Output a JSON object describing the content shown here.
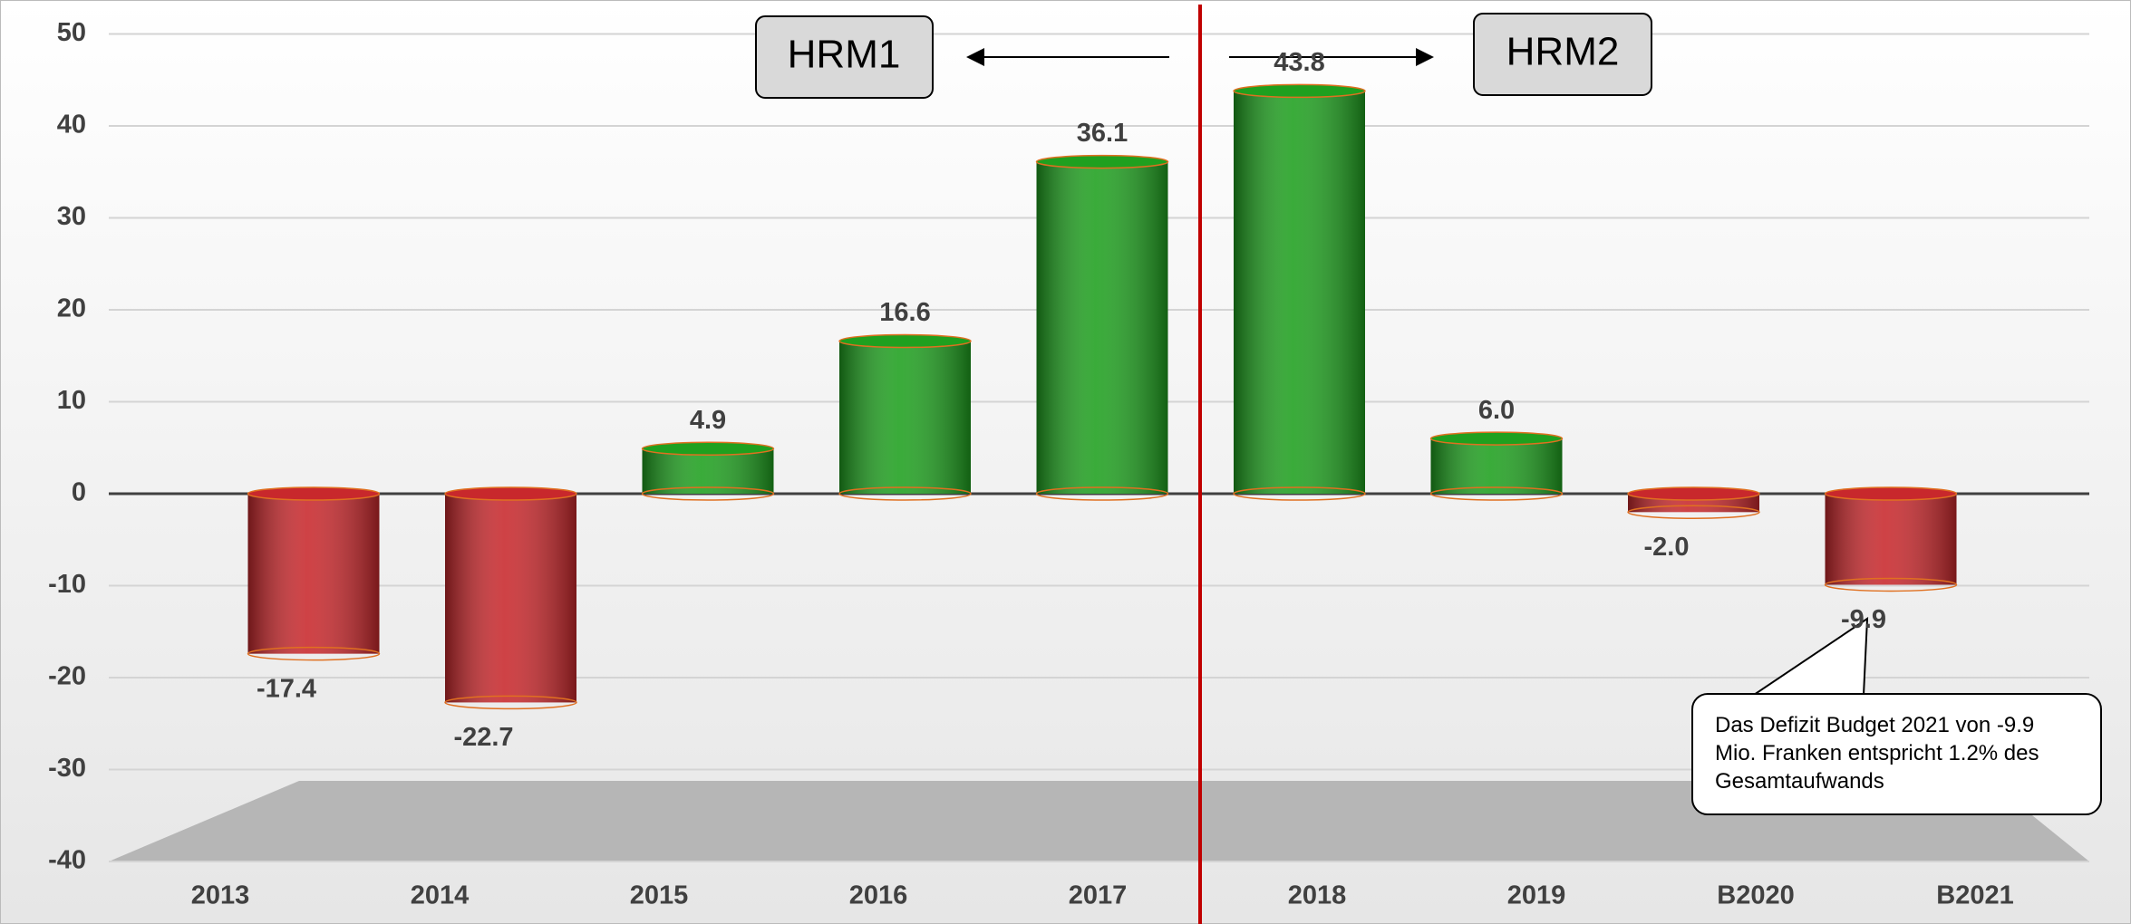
{
  "chart_data": {
    "type": "bar",
    "categories": [
      "2013",
      "2014",
      "2015",
      "2016",
      "2017",
      "2018",
      "2019",
      "B2020",
      "B2021"
    ],
    "values": [
      -17.4,
      -22.7,
      4.9,
      16.6,
      36.1,
      43.8,
      6.0,
      -2.0,
      -9.9
    ],
    "value_labels": [
      "-17.4",
      "-22.7",
      "4.9",
      "16.6",
      "36.1",
      "43.8",
      "6.0",
      "-2.0",
      "-9.9"
    ],
    "colors": [
      "#c8282c",
      "#c8282c",
      "#1fa01f",
      "#1fa01f",
      "#1fa01f",
      "#1fa01f",
      "#1fa01f",
      "#c8282c",
      "#c8282c"
    ],
    "ylim": [
      -40,
      50
    ],
    "yticks": [
      -40,
      -30,
      -20,
      -10,
      0,
      10,
      20,
      30,
      40,
      50
    ],
    "grid": true,
    "annotations": {
      "left_period": "HRM1",
      "right_period": "HRM2",
      "note": "Das Defizit Budget 2021 von -9.9 Mio. Franken entspricht 1.2% des Gesamtaufwands"
    }
  }
}
